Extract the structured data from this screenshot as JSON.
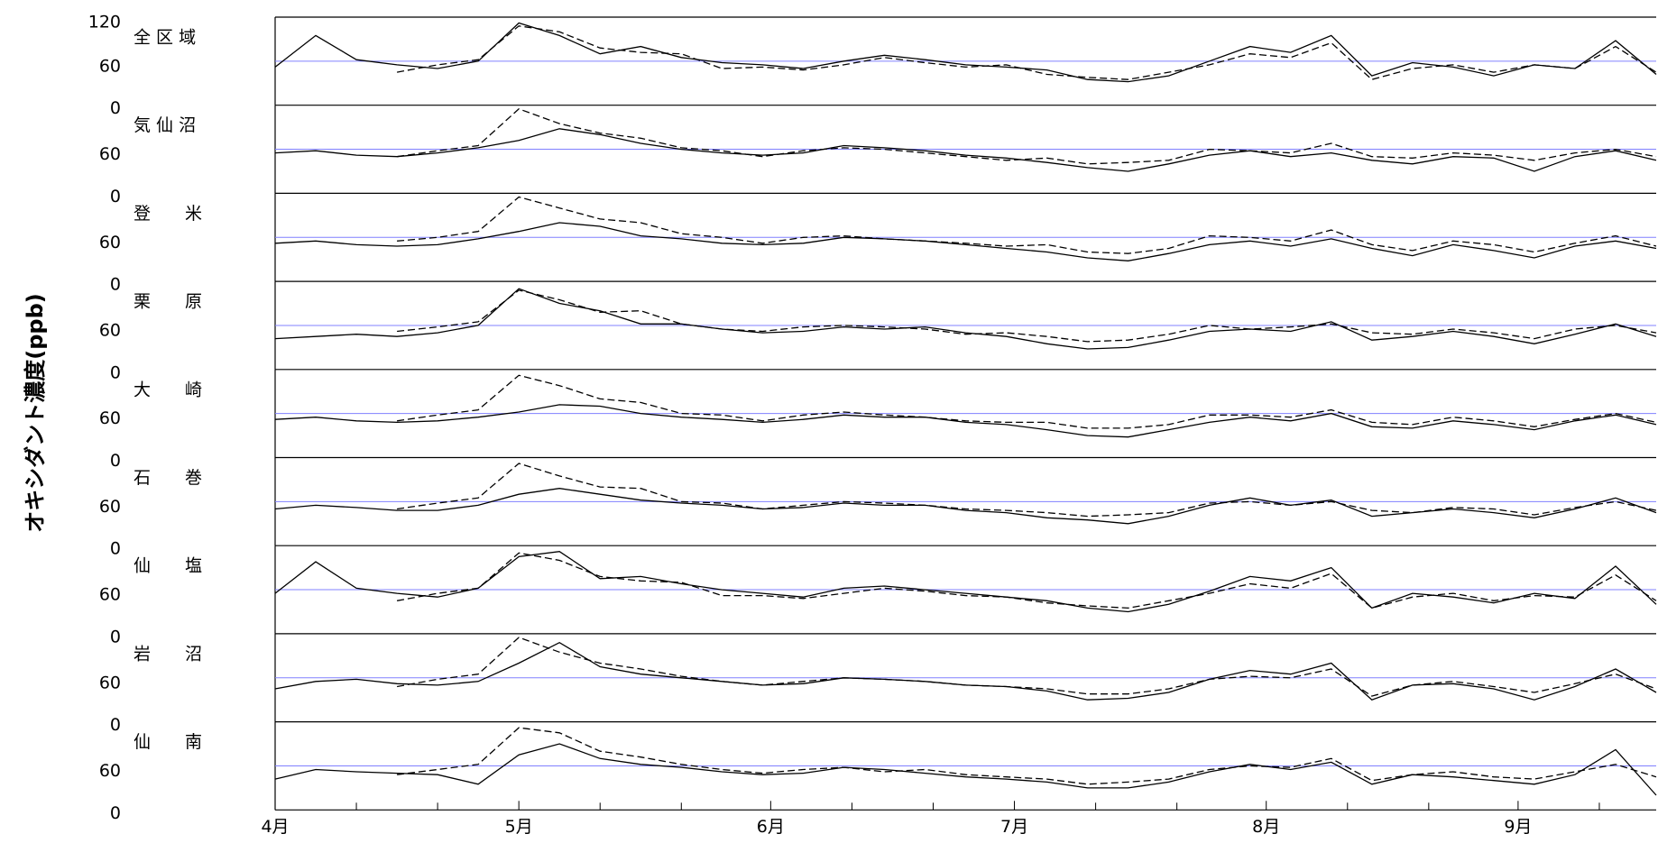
{
  "chart_data": {
    "type": "line",
    "ylabel": "オキシダント濃度(ppb)",
    "xlim": [
      0,
      170
    ],
    "xticks": [
      {
        "value": 0,
        "label": "4月"
      },
      {
        "value": 30,
        "label": "5月"
      },
      {
        "value": 61,
        "label": "6月"
      },
      {
        "value": 91,
        "label": "7月"
      },
      {
        "value": 122,
        "label": "8月"
      },
      {
        "value": 153,
        "label": "9月"
      }
    ],
    "xminorticks": [
      10,
      20,
      40,
      50,
      71,
      81,
      101,
      111,
      132,
      142,
      163
    ],
    "x": [
      0,
      5,
      10,
      15,
      20,
      25,
      30,
      35,
      40,
      45,
      50,
      55,
      60,
      65,
      70,
      75,
      80,
      85,
      90,
      95,
      100,
      105,
      110,
      115,
      120,
      125,
      130,
      135,
      140,
      145,
      150,
      155,
      160,
      165,
      170
    ],
    "ylim": [
      0,
      120
    ],
    "refline": {
      "value": 60,
      "color": "#8080ff"
    },
    "panels": [
      {
        "label": "全 区 域",
        "yticks": [
          0,
          60,
          120
        ],
        "series": [
          {
            "style": "solid",
            "color": "#000000",
            "values": [
              52,
              95,
              62,
              55,
              50,
              60,
              112,
              95,
              70,
              80,
              65,
              58,
              55,
              50,
              60,
              68,
              62,
              55,
              52,
              48,
              35,
              32,
              40,
              60,
              80,
              72,
              95,
              40,
              58,
              52,
              40,
              55,
              50,
              88,
              42
            ]
          },
          {
            "style": "dashed",
            "color": "#000000",
            "values": [
              null,
              null,
              null,
              45,
              55,
              62,
              108,
              100,
              78,
              72,
              70,
              50,
              52,
              48,
              55,
              65,
              58,
              52,
              55,
              42,
              38,
              35,
              45,
              55,
              70,
              65,
              85,
              35,
              50,
              55,
              45,
              55,
              50,
              80,
              45
            ]
          }
        ]
      },
      {
        "label": "気 仙 沼",
        "yticks": [
          0,
          60
        ],
        "series": [
          {
            "style": "solid",
            "color": "#000000",
            "values": [
              55,
              58,
              52,
              50,
              55,
              62,
              72,
              88,
              80,
              68,
              60,
              55,
              52,
              55,
              65,
              62,
              58,
              52,
              48,
              42,
              35,
              30,
              40,
              52,
              58,
              50,
              55,
              45,
              40,
              50,
              48,
              30,
              50,
              58,
              45
            ]
          },
          {
            "style": "dashed",
            "color": "#000000",
            "values": [
              null,
              null,
              null,
              50,
              58,
              65,
              115,
              95,
              82,
              75,
              62,
              58,
              50,
              58,
              62,
              60,
              55,
              50,
              45,
              48,
              40,
              42,
              45,
              60,
              58,
              55,
              68,
              50,
              48,
              55,
              52,
              45,
              55,
              60,
              50
            ]
          }
        ]
      },
      {
        "label": "登　　米",
        "yticks": [
          0,
          60
        ],
        "series": [
          {
            "style": "solid",
            "color": "#000000",
            "values": [
              52,
              55,
              50,
              48,
              50,
              58,
              68,
              80,
              75,
              62,
              58,
              52,
              50,
              52,
              60,
              58,
              55,
              50,
              45,
              40,
              32,
              28,
              38,
              50,
              55,
              48,
              58,
              45,
              35,
              50,
              42,
              32,
              48,
              55,
              45
            ]
          },
          {
            "style": "dashed",
            "color": "#000000",
            "values": [
              null,
              null,
              null,
              55,
              60,
              68,
              115,
              100,
              85,
              80,
              65,
              60,
              52,
              60,
              62,
              58,
              55,
              52,
              48,
              50,
              40,
              38,
              45,
              62,
              60,
              55,
              70,
              50,
              42,
              55,
              50,
              40,
              52,
              62,
              48
            ]
          }
        ]
      },
      {
        "label": "栗　　原",
        "yticks": [
          0,
          60
        ],
        "series": [
          {
            "style": "solid",
            "color": "#000000",
            "values": [
              42,
              45,
              48,
              45,
              50,
              60,
              110,
              90,
              80,
              62,
              62,
              55,
              50,
              52,
              58,
              55,
              58,
              50,
              45,
              35,
              28,
              30,
              40,
              52,
              55,
              52,
              65,
              40,
              45,
              52,
              45,
              35,
              48,
              62,
              45
            ]
          },
          {
            "style": "dashed",
            "color": "#000000",
            "values": [
              null,
              null,
              null,
              52,
              58,
              65,
              108,
              95,
              78,
              80,
              62,
              55,
              52,
              58,
              60,
              58,
              55,
              48,
              50,
              45,
              38,
              40,
              48,
              60,
              55,
              58,
              62,
              50,
              48,
              55,
              50,
              42,
              55,
              60,
              50
            ]
          }
        ]
      },
      {
        "label": "大　　崎",
        "yticks": [
          0,
          60
        ],
        "series": [
          {
            "style": "solid",
            "color": "#000000",
            "values": [
              52,
              55,
              50,
              48,
              50,
              55,
              62,
              72,
              70,
              60,
              55,
              52,
              48,
              52,
              58,
              55,
              55,
              48,
              45,
              38,
              30,
              28,
              38,
              48,
              55,
              50,
              60,
              42,
              40,
              50,
              45,
              38,
              50,
              58,
              45
            ]
          },
          {
            "style": "dashed",
            "color": "#000000",
            "values": [
              null,
              null,
              null,
              50,
              58,
              65,
              112,
              98,
              80,
              75,
              60,
              58,
              50,
              58,
              62,
              58,
              55,
              50,
              48,
              48,
              40,
              40,
              45,
              58,
              58,
              55,
              65,
              48,
              45,
              55,
              50,
              42,
              52,
              60,
              48
            ]
          }
        ]
      },
      {
        "label": "石　　巻",
        "yticks": [
          0,
          60
        ],
        "series": [
          {
            "style": "solid",
            "color": "#000000",
            "values": [
              50,
              55,
              52,
              48,
              48,
              55,
              70,
              78,
              70,
              62,
              58,
              55,
              50,
              52,
              58,
              55,
              55,
              48,
              45,
              38,
              35,
              30,
              40,
              55,
              65,
              55,
              62,
              40,
              45,
              50,
              45,
              38,
              50,
              65,
              45
            ]
          },
          {
            "style": "dashed",
            "color": "#000000",
            "values": [
              null,
              null,
              null,
              50,
              58,
              65,
              112,
              95,
              80,
              78,
              60,
              58,
              50,
              55,
              60,
              58,
              55,
              50,
              48,
              45,
              40,
              42,
              45,
              58,
              60,
              55,
              60,
              48,
              45,
              52,
              50,
              42,
              52,
              60,
              48
            ]
          }
        ]
      },
      {
        "label": "仙　　塩",
        "yticks": [
          0,
          60
        ],
        "series": [
          {
            "style": "solid",
            "color": "#000000",
            "values": [
              55,
              98,
              62,
              55,
              50,
              62,
              105,
              112,
              75,
              78,
              68,
              60,
              55,
              50,
              62,
              65,
              60,
              55,
              50,
              45,
              35,
              30,
              40,
              58,
              78,
              72,
              90,
              35,
              55,
              50,
              42,
              55,
              48,
              92,
              40
            ]
          },
          {
            "style": "dashed",
            "color": "#000000",
            "values": [
              null,
              null,
              null,
              45,
              55,
              62,
              110,
              100,
              78,
              72,
              70,
              52,
              52,
              48,
              55,
              62,
              58,
              52,
              50,
              42,
              38,
              35,
              45,
              55,
              68,
              62,
              82,
              35,
              50,
              55,
              45,
              52,
              50,
              80,
              45
            ]
          }
        ]
      },
      {
        "label": "岩　　沼",
        "yticks": [
          0,
          60
        ],
        "series": [
          {
            "style": "solid",
            "color": "#000000",
            "values": [
              45,
              55,
              58,
              52,
              50,
              55,
              80,
              108,
              75,
              65,
              60,
              55,
              50,
              52,
              60,
              58,
              55,
              50,
              48,
              42,
              30,
              32,
              40,
              58,
              70,
              65,
              80,
              30,
              50,
              52,
              45,
              30,
              48,
              72,
              40
            ]
          },
          {
            "style": "dashed",
            "color": "#000000",
            "values": [
              null,
              null,
              null,
              48,
              58,
              65,
              115,
              95,
              80,
              72,
              62,
              55,
              50,
              55,
              60,
              58,
              55,
              50,
              48,
              45,
              38,
              38,
              45,
              58,
              62,
              60,
              72,
              35,
              50,
              55,
              48,
              40,
              52,
              65,
              45
            ]
          }
        ]
      },
      {
        "label": "仙　　南",
        "yticks": [
          0,
          60
        ],
        "series": [
          {
            "style": "solid",
            "color": "#000000",
            "values": [
              42,
              55,
              52,
              50,
              48,
              35,
              75,
              90,
              70,
              62,
              58,
              52,
              48,
              50,
              58,
              55,
              50,
              45,
              42,
              38,
              30,
              30,
              38,
              52,
              62,
              55,
              65,
              35,
              48,
              45,
              40,
              35,
              48,
              82,
              20
            ]
          },
          {
            "style": "dashed",
            "color": "#000000",
            "values": [
              null,
              null,
              null,
              48,
              55,
              62,
              112,
              105,
              80,
              72,
              62,
              55,
              50,
              55,
              58,
              52,
              55,
              48,
              45,
              42,
              35,
              38,
              42,
              55,
              60,
              58,
              70,
              40,
              48,
              52,
              45,
              42,
              52,
              62,
              45
            ]
          }
        ]
      }
    ]
  }
}
